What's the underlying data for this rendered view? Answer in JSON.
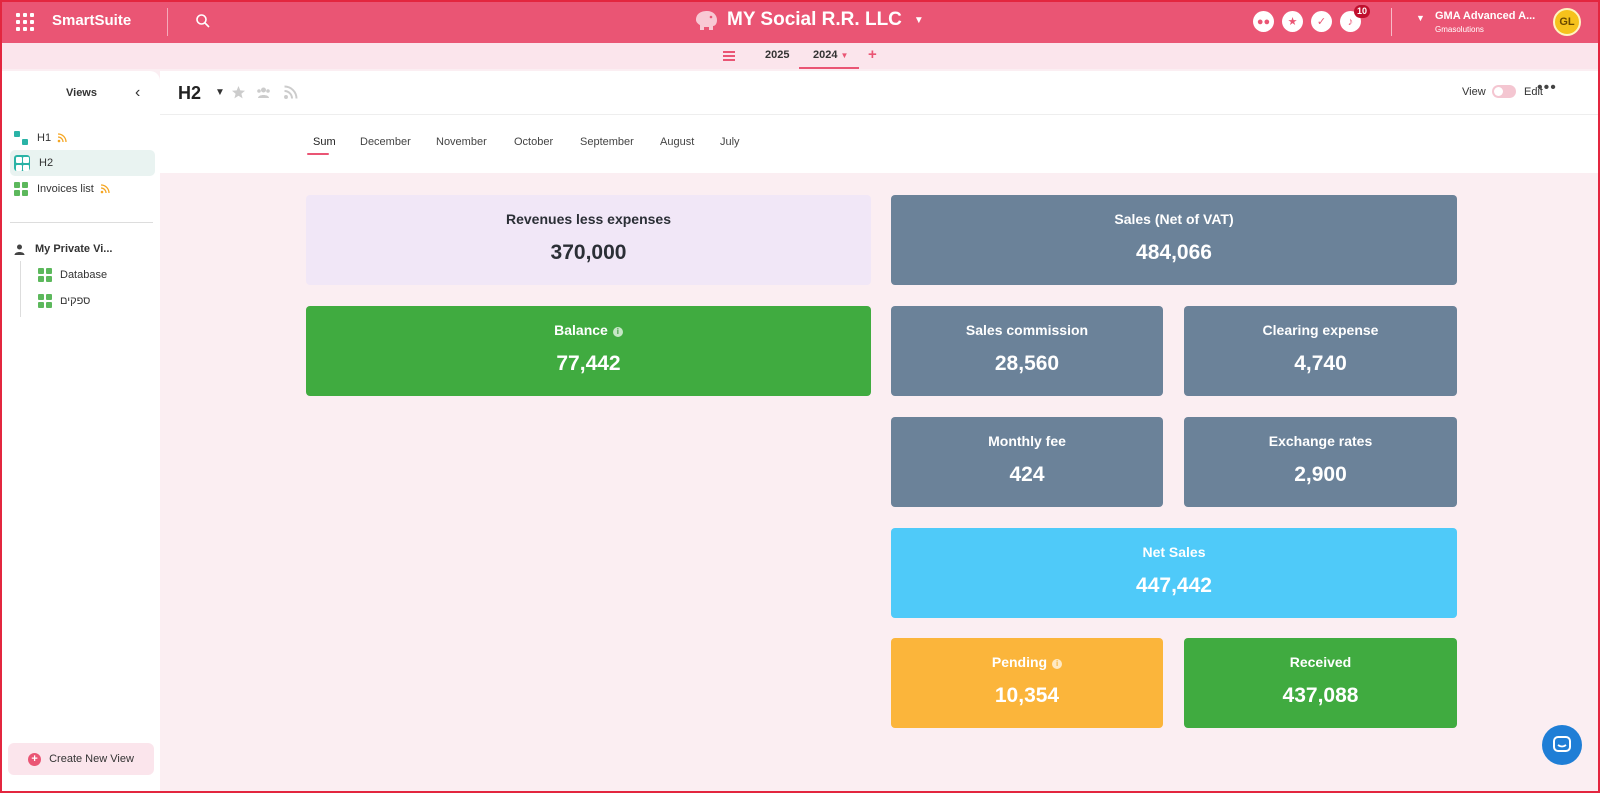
{
  "app": {
    "brand": "SmartSuite"
  },
  "workspace": {
    "title": "MY Social R.R. LLC"
  },
  "notifications": {
    "count": "10"
  },
  "user": {
    "name": "GMA Advanced A...",
    "org": "Gmasolutions",
    "initials": "GL"
  },
  "years": {
    "items": [
      "2025",
      "2024"
    ],
    "active": "2024"
  },
  "sidebar": {
    "title": "Views",
    "views": [
      {
        "label": "H1"
      },
      {
        "label": "H2"
      },
      {
        "label": "Invoices list"
      }
    ],
    "private": {
      "label": "My Private Vi...",
      "items": [
        {
          "label": "Database"
        },
        {
          "label": "ספקים"
        }
      ]
    },
    "create_label": "Create New View"
  },
  "view": {
    "title": "H2",
    "toggle_view": "View",
    "toggle_edit": "Edit"
  },
  "tabs": [
    "Sum",
    "December",
    "November",
    "October",
    "September",
    "August",
    "July"
  ],
  "cards": {
    "revenues": {
      "label": "Revenues less expenses",
      "value": "370,000"
    },
    "balance": {
      "label": "Balance",
      "value": "77,442"
    },
    "sales": {
      "label": "Sales (Net of VAT)",
      "value": "484,066"
    },
    "commission": {
      "label": "Sales commission",
      "value": "28,560"
    },
    "clearing": {
      "label": "Clearing expense",
      "value": "4,740"
    },
    "monthly": {
      "label": "Monthly fee",
      "value": "424"
    },
    "exchange": {
      "label": "Exchange rates",
      "value": "2,900"
    },
    "net_sales": {
      "label": "Net Sales",
      "value": "447,442"
    },
    "pending": {
      "label": "Pending",
      "value": "10,354"
    },
    "received": {
      "label": "Received",
      "value": "437,088"
    }
  },
  "colors": {
    "accent": "#ea5574",
    "slate": "#6b8299",
    "green": "#40ab40",
    "cyan": "#4fcaf9",
    "amber": "#fbb53b",
    "lavender": "#f1e7f7"
  }
}
